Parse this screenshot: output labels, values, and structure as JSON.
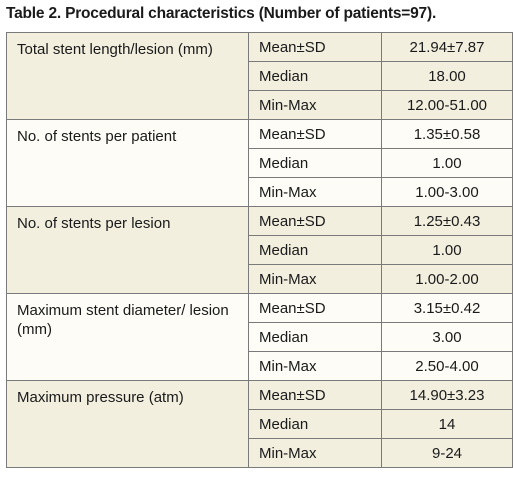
{
  "title": "Table 2. Procedural characteristics (Number of patients=97).",
  "groups": [
    {
      "label": "Total stent length/lesion (mm)",
      "rows": [
        {
          "stat": "Mean±SD",
          "value": "21.94±7.87"
        },
        {
          "stat": "Median",
          "value": "18.00"
        },
        {
          "stat": "Min-Max",
          "value": "12.00-51.00"
        }
      ]
    },
    {
      "label": "No. of stents per patient",
      "rows": [
        {
          "stat": "Mean±SD",
          "value": "1.35±0.58"
        },
        {
          "stat": "Median",
          "value": "1.00"
        },
        {
          "stat": "Min-Max",
          "value": "1.00-3.00"
        }
      ]
    },
    {
      "label": "No. of stents per lesion",
      "rows": [
        {
          "stat": "Mean±SD",
          "value": "1.25±0.43"
        },
        {
          "stat": "Median",
          "value": "1.00"
        },
        {
          "stat": "Min-Max",
          "value": "1.00-2.00"
        }
      ]
    },
    {
      "label": "Maximum stent diameter/ lesion (mm)",
      "rows": [
        {
          "stat": "Mean±SD",
          "value": "3.15±0.42"
        },
        {
          "stat": "Median",
          "value": "3.00"
        },
        {
          "stat": "Min-Max",
          "value": "2.50-4.00"
        }
      ]
    },
    {
      "label": "Maximum pressure (atm)",
      "rows": [
        {
          "stat": "Mean±SD",
          "value": "14.90±3.23"
        },
        {
          "stat": "Median",
          "value": "14"
        },
        {
          "stat": "Min-Max",
          "value": "9-24"
        }
      ]
    }
  ]
}
